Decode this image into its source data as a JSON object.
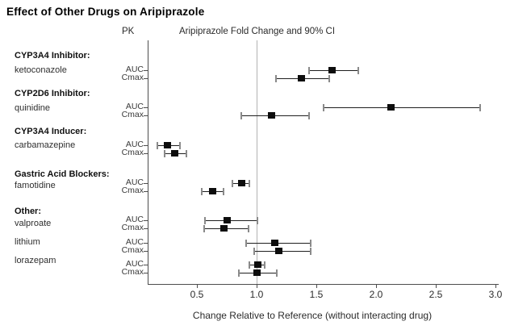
{
  "title": "Effect of Other Drugs on Aripiprazole",
  "columns": {
    "pk_header": "PK",
    "plot_header": "Aripiprazole Fold Change and 90% CI"
  },
  "chart_data": {
    "type": "forest",
    "title": "Effect of Other Drugs on Aripiprazole",
    "xlabel": "Change Relative to Reference (without interacting drug)",
    "ci_level": "90%",
    "x_ticks": [
      0.5,
      1.0,
      1.5,
      2.0,
      2.5,
      3.0
    ],
    "x_tick_labels": [
      "0.5",
      "1.0",
      "1.5",
      "2.0",
      "2.5",
      "3.0"
    ],
    "xlim": [
      0.09,
      3.0
    ],
    "reference_line_x": 1.0,
    "grid": false,
    "groups": [
      {
        "header": "CYP3A4 Inhibitor:",
        "drug": "ketoconazole",
        "rows": [
          {
            "pk": "AUC",
            "value": 1.63,
            "ci": [
              1.44,
              1.85
            ]
          },
          {
            "pk": "Cmax",
            "value": 1.37,
            "ci": [
              1.16,
              1.61
            ]
          }
        ]
      },
      {
        "header": "CYP2D6 Inhibitor:",
        "drug": "quinidine",
        "rows": [
          {
            "pk": "AUC",
            "value": 2.12,
            "ci": [
              1.56,
              2.87
            ]
          },
          {
            "pk": "Cmax",
            "value": 1.12,
            "ci": [
              0.87,
              1.44
            ]
          }
        ]
      },
      {
        "header": "CYP3A4 Inducer:",
        "drug": "carbamazepine",
        "rows": [
          {
            "pk": "AUC",
            "value": 0.25,
            "ci": [
              0.17,
              0.36
            ]
          },
          {
            "pk": "Cmax",
            "value": 0.31,
            "ci": [
              0.23,
              0.41
            ]
          }
        ]
      },
      {
        "header": "Gastric Acid Blockers:",
        "drug": "famotidine",
        "rows": [
          {
            "pk": "AUC",
            "value": 0.87,
            "ci": [
              0.8,
              0.94
            ]
          },
          {
            "pk": "Cmax",
            "value": 0.63,
            "ci": [
              0.54,
              0.72
            ]
          }
        ]
      },
      {
        "header": "Other:",
        "drug": "valproate",
        "rows": [
          {
            "pk": "AUC",
            "value": 0.75,
            "ci": [
              0.57,
              1.01
            ]
          },
          {
            "pk": "Cmax",
            "value": 0.72,
            "ci": [
              0.56,
              0.93
            ]
          }
        ]
      },
      {
        "header": null,
        "drug": "lithium",
        "rows": [
          {
            "pk": "AUC",
            "value": 1.15,
            "ci": [
              0.91,
              1.45
            ]
          },
          {
            "pk": "Cmax",
            "value": 1.18,
            "ci": [
              0.98,
              1.45
            ]
          }
        ]
      },
      {
        "header": null,
        "drug": "lorazepam",
        "rows": [
          {
            "pk": "AUC",
            "value": 1.01,
            "ci": [
              0.94,
              1.07
            ]
          },
          {
            "pk": "Cmax",
            "value": 1.0,
            "ci": [
              0.85,
              1.17
            ]
          }
        ]
      }
    ],
    "colors": {
      "marker": "#0d0d0d",
      "ci_line": "#1f1f1f",
      "ci_cap": "#8a8a8a",
      "axis": "#4d4d4d",
      "reference_line": "#b3b3b3",
      "background": "#ffffff"
    }
  }
}
